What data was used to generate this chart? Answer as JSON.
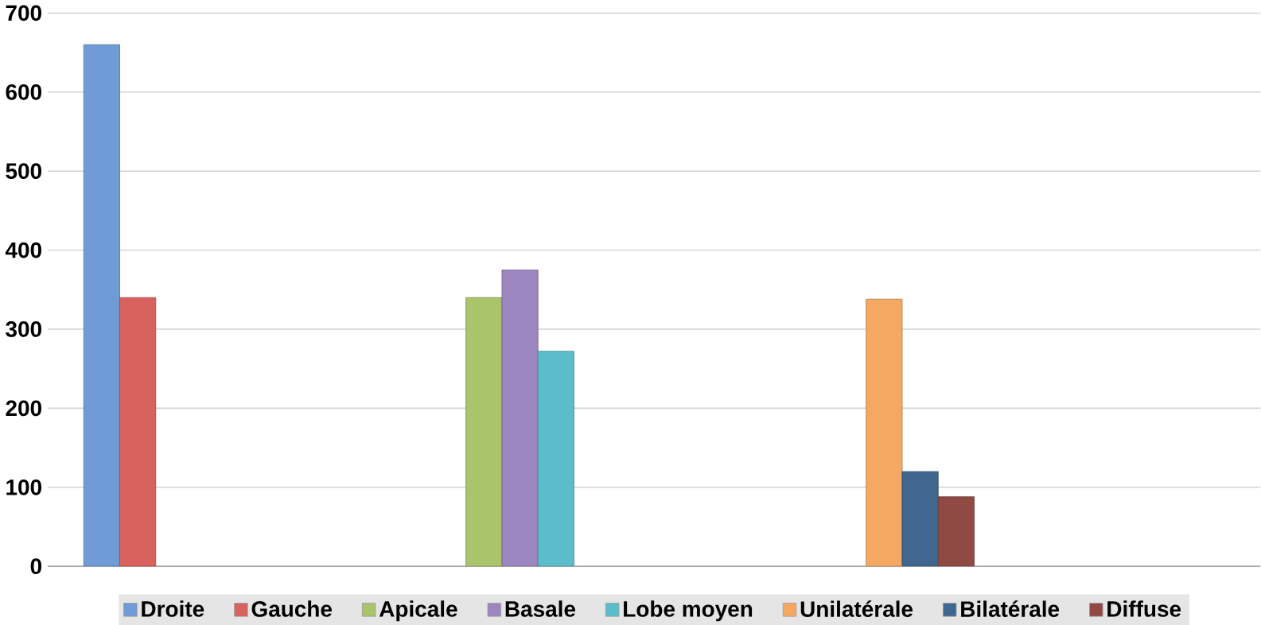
{
  "chart_data": {
    "type": "bar",
    "categories": [
      null,
      null,
      null
    ],
    "series": [
      {
        "name": "Droite",
        "color": "#6f9bd6",
        "values": [
          660,
          null,
          null
        ]
      },
      {
        "name": "Gauche",
        "color": "#d9625e",
        "values": [
          340,
          null,
          null
        ]
      },
      {
        "name": "Apicale",
        "color": "#a9c46a",
        "values": [
          null,
          340,
          null
        ]
      },
      {
        "name": "Basale",
        "color": "#9c86c0",
        "values": [
          null,
          375,
          null
        ]
      },
      {
        "name": "Lobe moyen",
        "color": "#5bbccc",
        "values": [
          null,
          272,
          null
        ]
      },
      {
        "name": "Unilatérale",
        "color": "#f5a862",
        "values": [
          null,
          null,
          338
        ]
      },
      {
        "name": "Bilatérale",
        "color": "#3f6790",
        "values": [
          null,
          null,
          120
        ]
      },
      {
        "name": "Diffuse",
        "color": "#8f4a44",
        "values": [
          null,
          null,
          88
        ]
      }
    ],
    "ylim": [
      0,
      700
    ],
    "yticks": [
      0,
      100,
      200,
      300,
      400,
      500,
      600,
      700
    ],
    "grid": "y",
    "legend": "bottom",
    "tick_labels": "y"
  }
}
